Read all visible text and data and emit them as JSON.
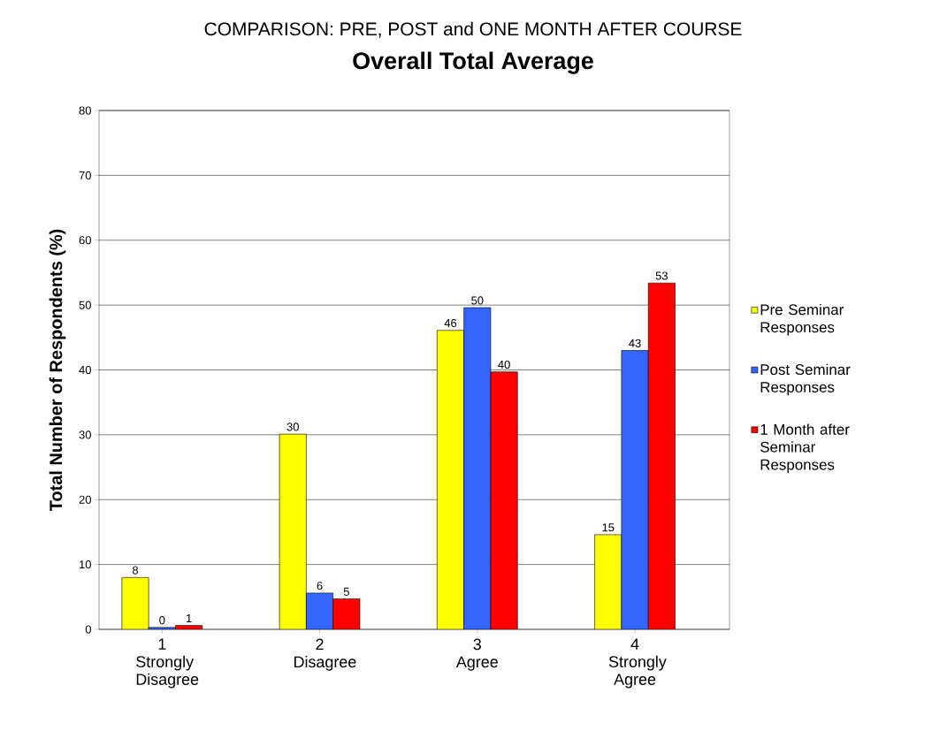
{
  "chart_data": {
    "type": "bar",
    "title": "COMPARISON: PRE,  POST and ONE MONTH AFTER COURSE",
    "subtitle": "Overall Total Average",
    "ylabel": "Total Number of Respondents (%)",
    "categories": [
      "1 Strongly Disagree",
      "2 Disagree",
      "3 Agree",
      "4 Strongly Agree"
    ],
    "series": [
      {
        "name": "Pre Seminar Responses",
        "color": "#ffff00",
        "values": [
          8,
          30.1,
          46.1,
          14.6
        ],
        "value_labels": [
          "8",
          "30",
          "46",
          "15"
        ]
      },
      {
        "name": "Post Seminar Responses",
        "color": "#3366ff",
        "values": [
          0.3,
          5.6,
          49.6,
          43
        ],
        "value_labels": [
          "0",
          "6",
          "50",
          "43"
        ]
      },
      {
        "name": "1 Month after Seminar Responses",
        "color": "#ff0000",
        "values": [
          0.6,
          4.7,
          39.7,
          53.4
        ],
        "value_labels": [
          "1",
          "5",
          "40",
          "53"
        ]
      }
    ],
    "ylim": [
      0,
      80
    ],
    "yticks": [
      0,
      10,
      20,
      30,
      40,
      50,
      60,
      70,
      80
    ],
    "grid": "y",
    "legend": "right"
  }
}
